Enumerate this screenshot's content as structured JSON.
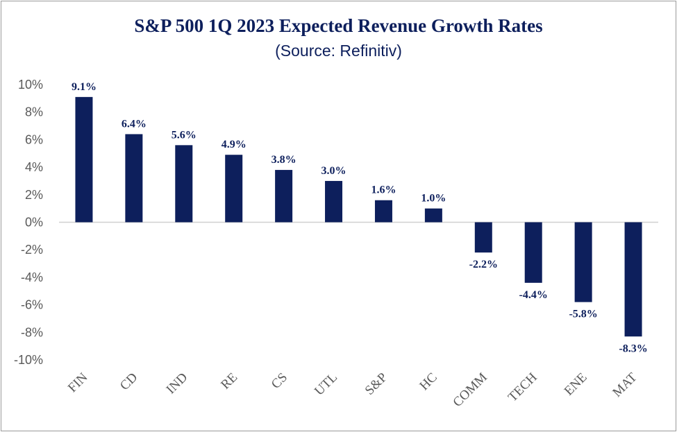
{
  "chart_data": {
    "type": "bar",
    "title": "S&P 500 1Q 2023 Expected Revenue Growth Rates",
    "subtitle": "(Source: Refinitiv)",
    "xlabel": "",
    "ylabel": "",
    "ylim": [
      -10,
      10
    ],
    "ytick_step": 2,
    "ytick_suffix": "%",
    "grid": false,
    "legend": "none",
    "bar_color": "#0d1f5c",
    "categories": [
      "FIN",
      "CD",
      "IND",
      "RE",
      "CS",
      "UTL",
      "S&P",
      "HC",
      "COMM",
      "TECH",
      "ENE",
      "MAT"
    ],
    "values": [
      9.1,
      6.4,
      5.6,
      4.9,
      3.8,
      3.0,
      1.6,
      1.0,
      -2.2,
      -4.4,
      -5.8,
      -8.3
    ],
    "data_labels": [
      "9.1%",
      "6.4%",
      "5.6%",
      "4.9%",
      "3.8%",
      "3.0%",
      "1.6%",
      "1.0%",
      "-2.2%",
      "-4.4%",
      "-5.8%",
      "-8.3%"
    ]
  }
}
